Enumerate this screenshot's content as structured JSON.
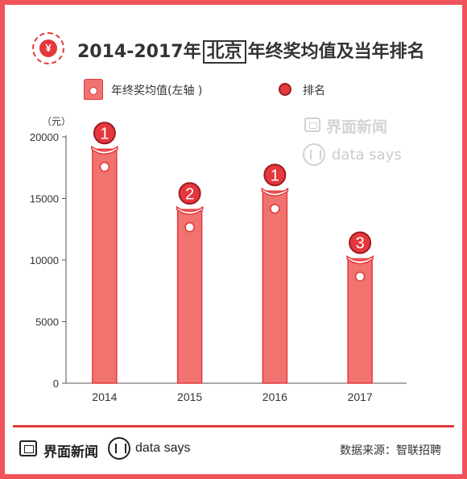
{
  "header": {
    "title_prefix": "2014-2017年",
    "title_boxed": "北京",
    "title_suffix": "年终奖均值及当年排名"
  },
  "legend": {
    "bar_label": "年终奖均值(左轴 )",
    "rank_label": "排名"
  },
  "watermarks": {
    "brand": "界面新闻",
    "says": "data says"
  },
  "footer": {
    "brand": "界面新闻",
    "says": "data says",
    "source": "数据来源：智联招聘"
  },
  "colors": {
    "bar_fill": "#f07370",
    "bar_stroke": "#e5383d",
    "rank_fill": "#e5383d",
    "rank_stroke": "#9a1d22",
    "accent": "#e5383d",
    "frame": "#f0545a"
  },
  "chart_data": {
    "type": "bar",
    "ylabel": "（元）",
    "xlabel": "",
    "ylim": [
      0,
      20000
    ],
    "yticks": [
      0,
      5000,
      10000,
      15000,
      20000
    ],
    "categories": [
      "2014",
      "2015",
      "2016",
      "2017"
    ],
    "series": [
      {
        "name": "年终奖均值(左轴 )",
        "values": [
          19000,
          14100,
          15600,
          10100
        ]
      },
      {
        "name": "排名",
        "values": [
          1,
          2,
          1,
          3
        ]
      }
    ],
    "grid": false,
    "legend_position": "top"
  }
}
